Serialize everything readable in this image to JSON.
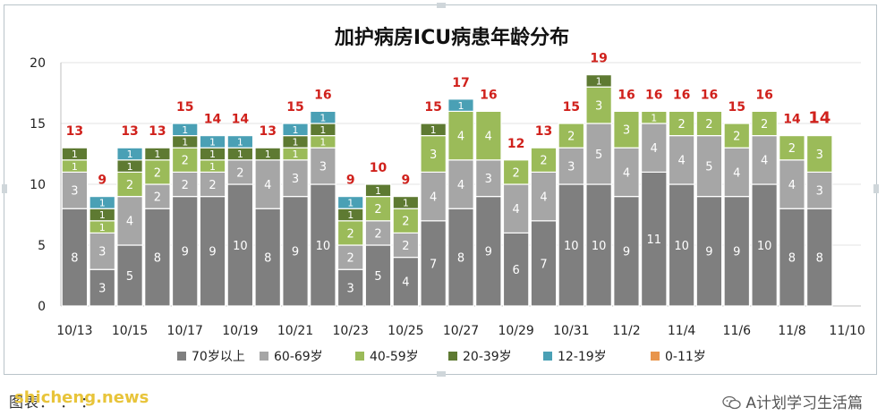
{
  "chart_data": {
    "type": "bar",
    "stacked": true,
    "title": "加护病房ICU病患年龄分布",
    "ylim": [
      0,
      20
    ],
    "yticks": [
      0,
      5,
      10,
      15,
      20
    ],
    "grid": true,
    "legend_position": "bottom",
    "categories": [
      "10/13",
      "10/14",
      "10/15",
      "10/16",
      "10/17",
      "10/18",
      "10/19",
      "10/20",
      "10/21",
      "10/22",
      "10/23",
      "10/24",
      "10/25",
      "10/26",
      "10/27",
      "10/28",
      "10/29",
      "10/30",
      "10/31",
      "11/1",
      "11/2",
      "11/3",
      "11/4",
      "11/5",
      "11/6",
      "11/7",
      "11/8",
      "11/9"
    ],
    "x_tick_labels": [
      "10/13",
      "10/15",
      "10/17",
      "10/19",
      "10/21",
      "10/23",
      "10/25",
      "10/27",
      "10/29",
      "10/31",
      "11/2",
      "11/4",
      "11/6",
      "11/8",
      "11/10"
    ],
    "series": [
      {
        "name": "70岁以上",
        "color": "#7f7f7f",
        "values": [
          8,
          3,
          5,
          8,
          9,
          9,
          10,
          8,
          9,
          10,
          3,
          5,
          4,
          7,
          8,
          9,
          6,
          7,
          10,
          10,
          9,
          11,
          10,
          9,
          9,
          10,
          8,
          8
        ]
      },
      {
        "name": "60-69岁",
        "color": "#a6a6a6",
        "values": [
          3,
          3,
          4,
          2,
          2,
          2,
          2,
          4,
          3,
          3,
          2,
          2,
          2,
          4,
          4,
          3,
          4,
          4,
          3,
          5,
          4,
          4,
          4,
          5,
          4,
          4,
          4,
          3
        ]
      },
      {
        "name": "40-59岁",
        "color": "#9bbb59",
        "values": [
          1,
          1,
          2,
          2,
          2,
          1,
          0,
          0,
          1,
          1,
          2,
          2,
          2,
          3,
          4,
          4,
          2,
          2,
          2,
          3,
          3,
          1,
          2,
          2,
          2,
          2,
          2,
          3
        ]
      },
      {
        "name": "20-39岁",
        "color": "#5e7a32",
        "values": [
          1,
          1,
          1,
          1,
          1,
          1,
          1,
          1,
          1,
          1,
          1,
          1,
          1,
          1,
          0,
          0,
          0,
          0,
          0,
          1,
          0,
          0,
          0,
          0,
          0,
          0,
          0,
          0
        ]
      },
      {
        "name": "12-19岁",
        "color": "#4aa0b5",
        "values": [
          0,
          1,
          1,
          0,
          1,
          1,
          1,
          0,
          1,
          1,
          1,
          0,
          0,
          0,
          1,
          0,
          0,
          0,
          0,
          0,
          0,
          0,
          0,
          0,
          0,
          0,
          0,
          0
        ]
      },
      {
        "name": "0-11岁",
        "color": "#e8954c",
        "values": [
          0,
          0,
          0,
          0,
          0,
          0,
          0,
          0,
          0,
          0,
          0,
          0,
          0,
          0,
          0,
          0,
          0,
          0,
          0,
          0,
          0,
          0,
          0,
          0,
          0,
          0,
          0,
          0
        ]
      }
    ],
    "totals": [
      13,
      9,
      13,
      13,
      15,
      14,
      14,
      13,
      15,
      16,
      9,
      10,
      9,
      15,
      17,
      16,
      12,
      13,
      15,
      19,
      16,
      16,
      16,
      16,
      15,
      16,
      14,
      14
    ],
    "totals_color": "#d0211c"
  },
  "footer": {
    "left_text": "图表：  ：   ：",
    "watermark": "shicheng.news",
    "brand": "A计划学习生活篇"
  }
}
